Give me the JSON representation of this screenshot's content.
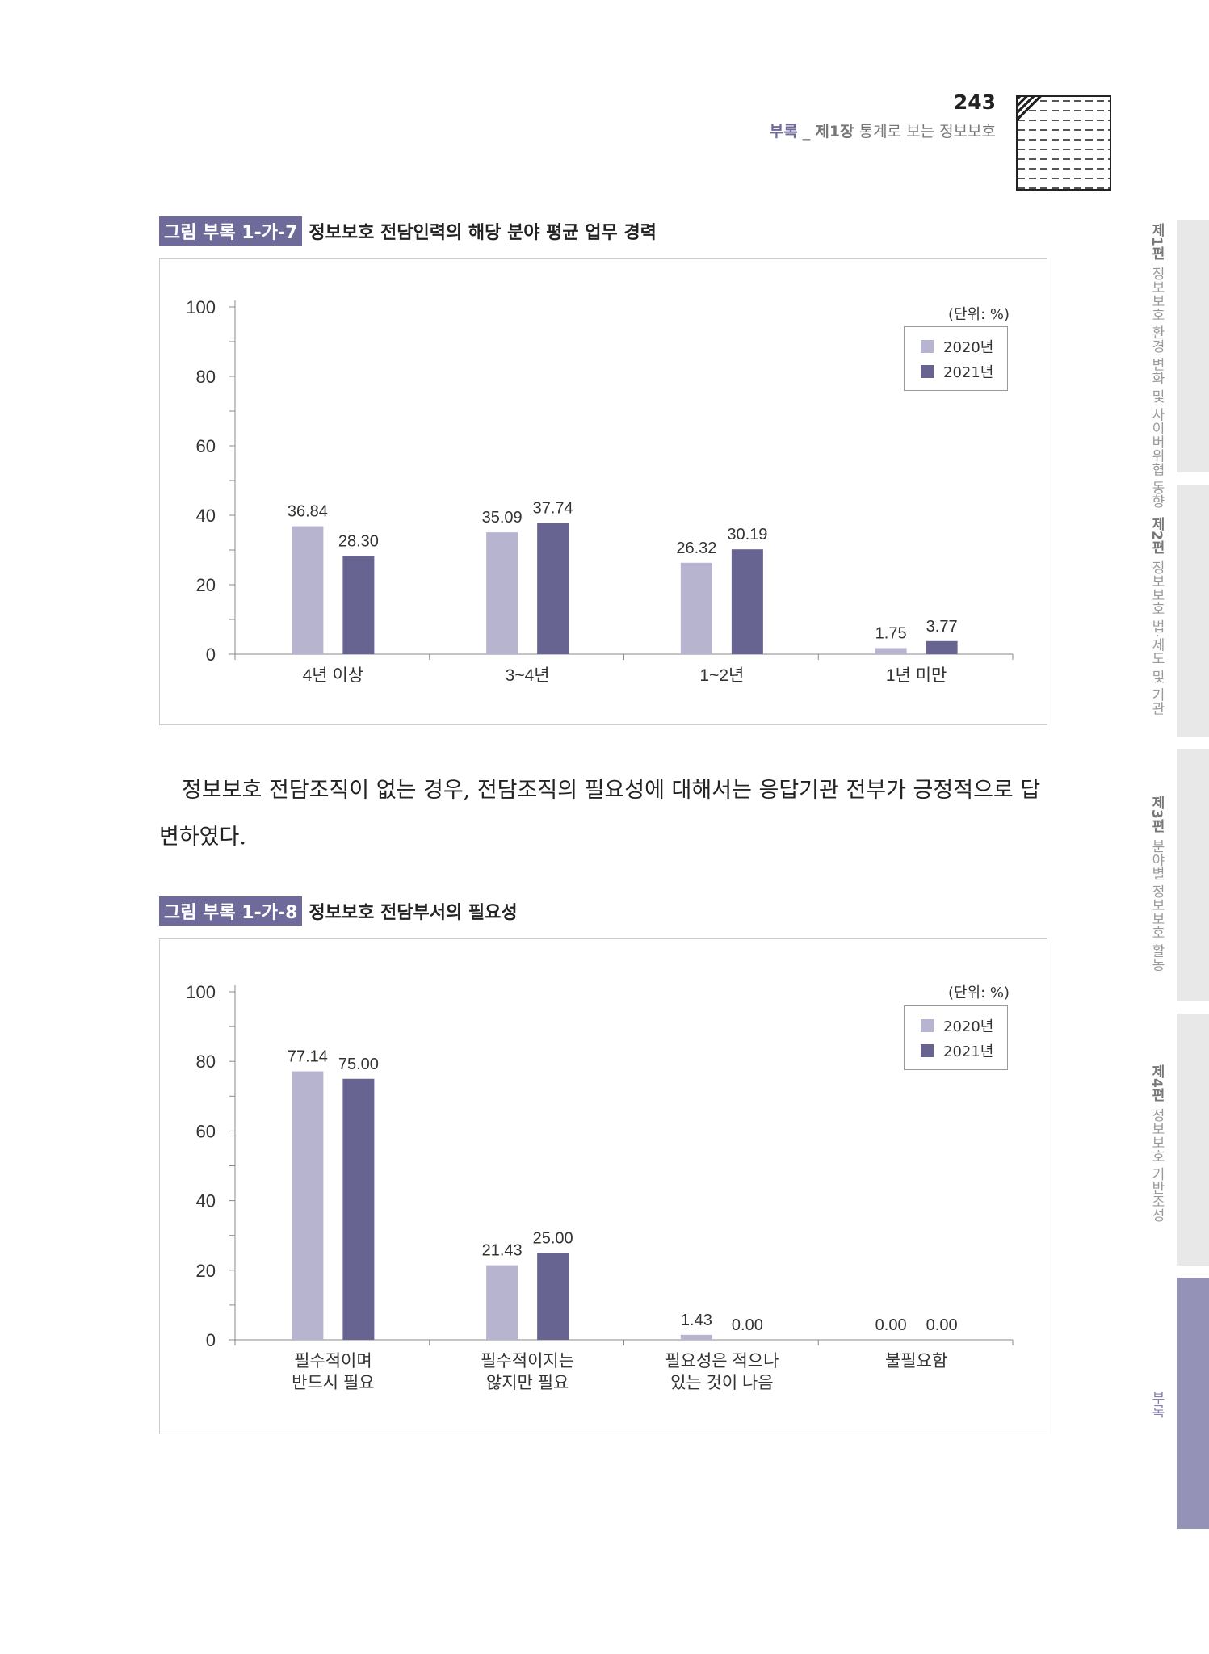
{
  "header": {
    "page_number": "243",
    "section": "부록",
    "separator": " _ ",
    "chapter": "제1장",
    "chapter_title": " 통계로 보는 정보보호"
  },
  "side_tabs": [
    {
      "part": "제1편",
      "title": "정보보호 환경 변화 및 사이버위협 동향"
    },
    {
      "part": "제2편",
      "title": "정보보호 법·제도 및 기관"
    },
    {
      "part": "제3편",
      "title": "분야별 정보보호 활동"
    },
    {
      "part": "제4편",
      "title": "정보보호 기반조성"
    },
    {
      "part": "",
      "title": "부록"
    }
  ],
  "body_text": "정보보호 전담조직이 없는 경우, 전담조직의 필요성에 대해서는 응답기관 전부가 긍정적으로 답변하였다.",
  "colors": {
    "2020": "#b7b4d0",
    "2021": "#676491",
    "accent": "#6e6a9a"
  },
  "chart_data": [
    {
      "type": "bar",
      "figure_label": "그림 부록 1-가-7",
      "title": "정보보호 전담인력의 해당 분야 평균 업무 경력",
      "unit": "(단위: %)",
      "categories": [
        [
          "4년 이상"
        ],
        [
          "3~4년"
        ],
        [
          "1~2년"
        ],
        [
          "1년 미만"
        ]
      ],
      "series": [
        {
          "name": "2020년",
          "values": [
            36.84,
            35.09,
            26.32,
            1.75
          ]
        },
        {
          "name": "2021년",
          "values": [
            28.3,
            37.74,
            30.19,
            3.77
          ]
        }
      ],
      "ylim": [
        0,
        100
      ],
      "yticks": [
        "0",
        "20",
        "40",
        "60",
        "80",
        "100"
      ],
      "legend": "top-right"
    },
    {
      "type": "bar",
      "figure_label": "그림 부록 1-가-8",
      "title": "정보보호 전담부서의 필요성",
      "unit": "(단위: %)",
      "categories": [
        [
          "필수적이며",
          "반드시 필요"
        ],
        [
          "필수적이지는",
          "않지만 필요"
        ],
        [
          "필요성은 적으나",
          "있는 것이 나음"
        ],
        [
          "불필요함"
        ]
      ],
      "series": [
        {
          "name": "2020년",
          "values": [
            77.14,
            21.43,
            1.43,
            0.0
          ]
        },
        {
          "name": "2021년",
          "values": [
            75.0,
            25.0,
            0.0,
            0.0
          ]
        }
      ],
      "ylim": [
        0,
        100
      ],
      "yticks": [
        "0",
        "20",
        "40",
        "60",
        "80",
        "100"
      ],
      "legend": "top-right"
    }
  ]
}
